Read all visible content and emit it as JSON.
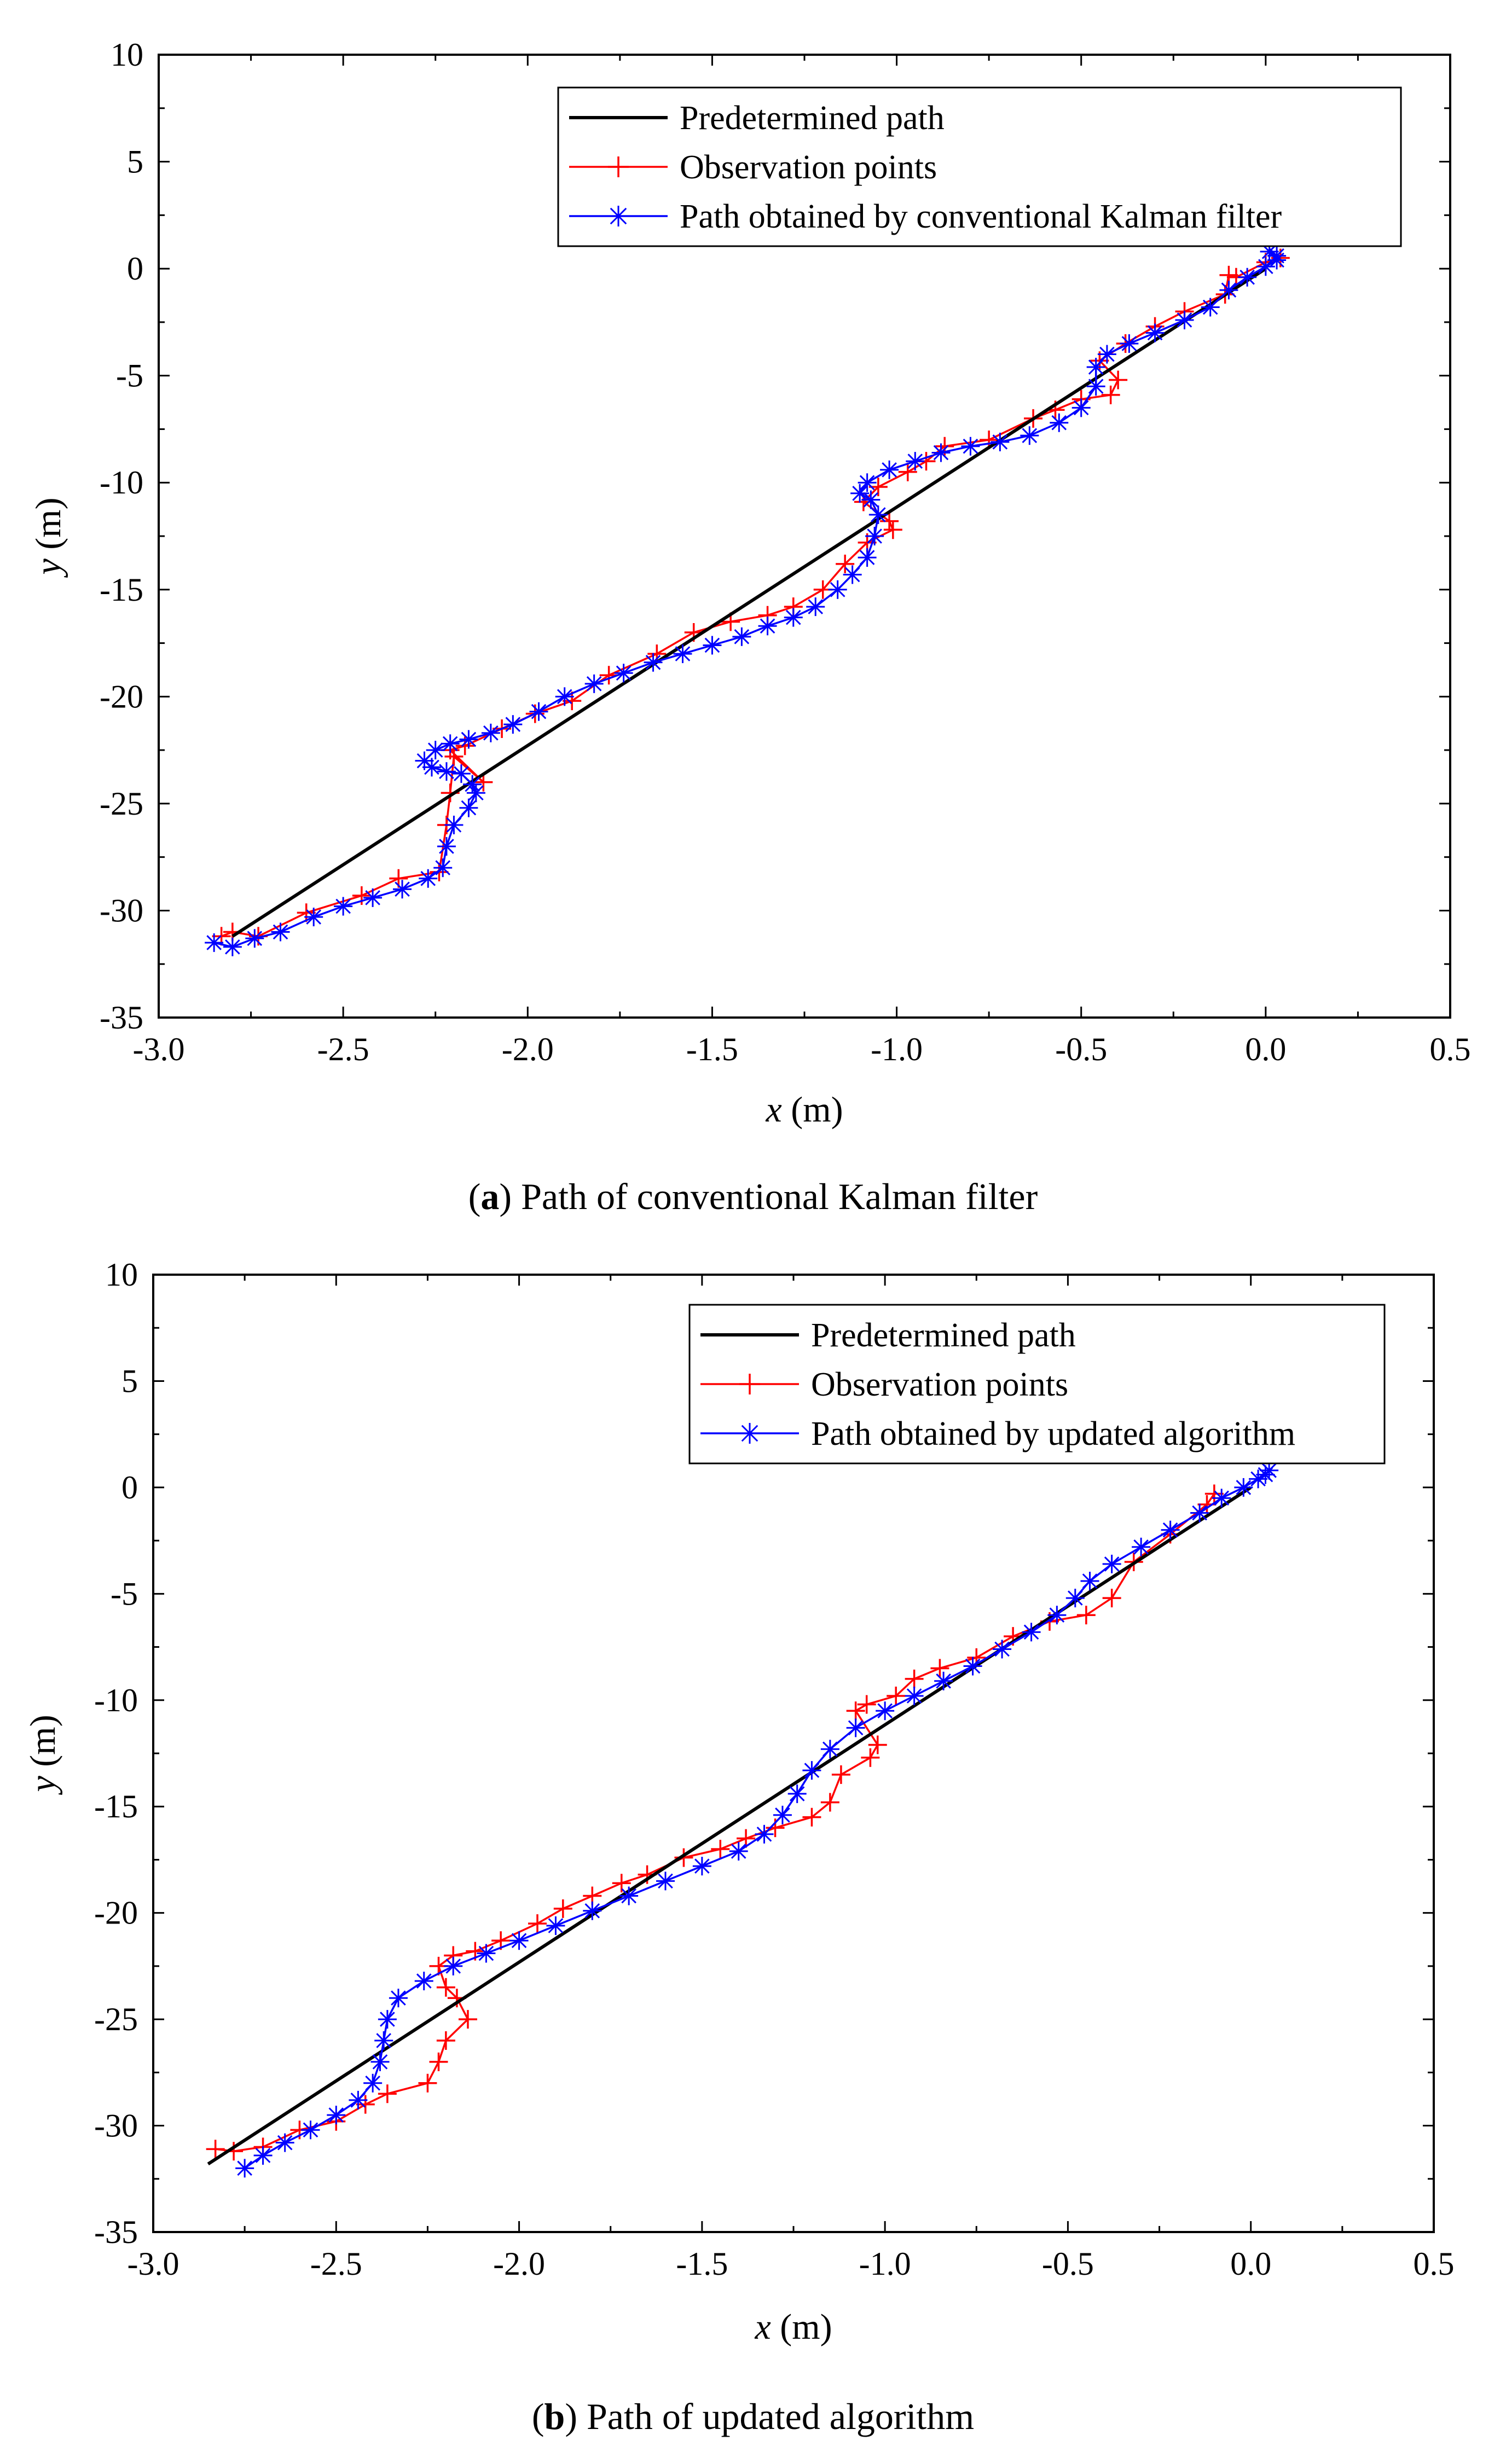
{
  "chart_data": [
    {
      "type": "line",
      "caption_letter": "a",
      "caption_text": " Path of conventional Kalman filter",
      "xlabel_var": "x",
      "xlabel_unit": " (m)",
      "ylabel_var": "y",
      "ylabel_unit": " (m)",
      "xlim": [
        -3.0,
        0.5
      ],
      "ylim": [
        -35,
        10
      ],
      "xticks": [
        -3.0,
        -2.5,
        -2.0,
        -1.5,
        -1.0,
        -0.5,
        0.0,
        0.5
      ],
      "xtick_labels": [
        "-3.0",
        "-2.5",
        "-2.0",
        "-1.5",
        "-1.0",
        "-0.5",
        "0.0",
        "0.5"
      ],
      "yticks": [
        10,
        5,
        0,
        -5,
        -10,
        -15,
        -20,
        -25,
        -30,
        -35
      ],
      "ytick_labels": [
        "10",
        "5",
        "0",
        "-5",
        "-10",
        "-15",
        "-20",
        "-25",
        "-30",
        "-35"
      ],
      "legend_location": "top-right",
      "series": [
        {
          "name": "Predetermined path",
          "color": "#000000",
          "marker": "none",
          "x": [
            -2.8,
            0.0
          ],
          "y": [
            -31.2,
            0.0
          ]
        },
        {
          "name": "Observation points",
          "color": "#ff0000",
          "marker": "plus",
          "x": [
            -2.83,
            -2.8,
            -2.73,
            -2.6,
            -2.45,
            -2.35,
            -2.24,
            -2.22,
            -2.21,
            -2.2,
            -2.12,
            -2.21,
            -2.17,
            -2.07,
            -1.98,
            -1.88,
            -1.78,
            -1.65,
            -1.55,
            -1.45,
            -1.35,
            -1.28,
            -1.2,
            -1.14,
            -1.08,
            -1.01,
            -1.02,
            -1.09,
            -1.05,
            -0.97,
            -0.92,
            -0.87,
            -0.75,
            -0.63,
            -0.57,
            -0.5,
            -0.42,
            -0.4,
            -0.45,
            -0.38,
            -0.3,
            -0.22,
            -0.11,
            -0.1,
            -0.08,
            0.0,
            0.04
          ],
          "y": [
            -31.2,
            -31.0,
            -31.2,
            -30.1,
            -29.3,
            -28.5,
            -28.2,
            -26.0,
            -24.5,
            -22.8,
            -24.0,
            -22.5,
            -22.3,
            -21.5,
            -20.8,
            -20.2,
            -19.0,
            -18.0,
            -17.0,
            -16.5,
            -16.2,
            -15.8,
            -15.0,
            -13.8,
            -12.8,
            -12.2,
            -11.8,
            -10.9,
            -10.2,
            -9.5,
            -9.0,
            -8.3,
            -8.0,
            -7.0,
            -6.6,
            -6.1,
            -5.9,
            -5.2,
            -4.3,
            -3.5,
            -2.7,
            -2.0,
            -1.2,
            -0.3,
            -0.4,
            0.3,
            0.5
          ]
        },
        {
          "name": "Path obtained by conventional Kalman filter",
          "color": "#0000ff",
          "marker": "asterisk",
          "x": [
            -2.85,
            -2.8,
            -2.74,
            -2.67,
            -2.58,
            -2.5,
            -2.42,
            -2.34,
            -2.27,
            -2.23,
            -2.22,
            -2.2,
            -2.16,
            -2.14,
            -2.15,
            -2.18,
            -2.22,
            -2.26,
            -2.28,
            -2.25,
            -2.21,
            -2.16,
            -2.1,
            -2.04,
            -1.97,
            -1.9,
            -1.82,
            -1.74,
            -1.66,
            -1.58,
            -1.5,
            -1.42,
            -1.35,
            -1.28,
            -1.22,
            -1.16,
            -1.12,
            -1.08,
            -1.06,
            -1.05,
            -1.07,
            -1.1,
            -1.08,
            -1.02,
            -0.95,
            -0.88,
            -0.8,
            -0.72,
            -0.64,
            -0.56,
            -0.5,
            -0.46,
            -0.46,
            -0.43,
            -0.37,
            -0.3,
            -0.22,
            -0.15,
            -0.1,
            -0.05,
            0.0,
            0.03,
            0.03,
            0.01
          ],
          "y": [
            -31.5,
            -31.7,
            -31.3,
            -31.0,
            -30.3,
            -29.8,
            -29.4,
            -29.0,
            -28.5,
            -28.0,
            -27.0,
            -26.0,
            -25.2,
            -24.5,
            -24.1,
            -23.6,
            -23.5,
            -23.3,
            -23.0,
            -22.5,
            -22.2,
            -22.0,
            -21.7,
            -21.3,
            -20.7,
            -20.0,
            -19.4,
            -18.9,
            -18.4,
            -18.0,
            -17.6,
            -17.2,
            -16.7,
            -16.3,
            -15.8,
            -15.0,
            -14.3,
            -13.5,
            -12.5,
            -11.5,
            -10.8,
            -10.5,
            -10.0,
            -9.4,
            -9.0,
            -8.6,
            -8.3,
            -8.1,
            -7.8,
            -7.2,
            -6.5,
            -5.5,
            -4.6,
            -4.0,
            -3.5,
            -3.0,
            -2.4,
            -1.8,
            -1.0,
            -0.4,
            0.1,
            0.4,
            0.6,
            0.8
          ]
        }
      ]
    },
    {
      "type": "line",
      "caption_letter": "b",
      "caption_text": " Path of updated algorithm",
      "xlabel_var": "x",
      "xlabel_unit": " (m)",
      "ylabel_var": "y",
      "ylabel_unit": " (m)",
      "xlim": [
        -3.0,
        0.5
      ],
      "ylim": [
        -35,
        10
      ],
      "xticks": [
        -3.0,
        -2.5,
        -2.0,
        -1.5,
        -1.0,
        -0.5,
        0.0,
        0.5
      ],
      "xtick_labels": [
        "-3.0",
        "-2.5",
        "-2.0",
        "-1.5",
        "-1.0",
        "-0.5",
        "0.0",
        "0.5"
      ],
      "yticks": [
        10,
        5,
        0,
        -5,
        -10,
        -15,
        -20,
        -25,
        -30,
        -35
      ],
      "ytick_labels": [
        "10",
        "5",
        "0",
        "-5",
        "-10",
        "-15",
        "-20",
        "-25",
        "-30",
        "-35"
      ],
      "legend_location": "top-right",
      "series": [
        {
          "name": "Predetermined path",
          "color": "#000000",
          "marker": "none",
          "x": [
            -2.85,
            0.0
          ],
          "y": [
            -31.8,
            0.0
          ]
        },
        {
          "name": "Observation points",
          "color": "#ff0000",
          "marker": "plus",
          "x": [
            -2.83,
            -2.78,
            -2.7,
            -2.6,
            -2.5,
            -2.42,
            -2.36,
            -2.25,
            -2.22,
            -2.2,
            -2.14,
            -2.17,
            -2.2,
            -2.22,
            -2.18,
            -2.12,
            -2.05,
            -1.95,
            -1.88,
            -1.8,
            -1.72,
            -1.65,
            -1.55,
            -1.45,
            -1.38,
            -1.3,
            -1.2,
            -1.15,
            -1.12,
            -1.04,
            -1.02,
            -1.08,
            -1.05,
            -0.97,
            -0.92,
            -0.85,
            -0.75,
            -0.65,
            -0.55,
            -0.45,
            -0.38,
            -0.32,
            -0.22,
            -0.12,
            -0.1
          ],
          "y": [
            -31.1,
            -31.2,
            -31.0,
            -30.2,
            -29.8,
            -29.0,
            -28.5,
            -28.0,
            -27.0,
            -26.0,
            -25.0,
            -24.0,
            -23.5,
            -22.5,
            -22.0,
            -21.8,
            -21.3,
            -20.5,
            -19.8,
            -19.2,
            -18.6,
            -18.2,
            -17.4,
            -17.0,
            -16.5,
            -16.0,
            -15.5,
            -14.8,
            -13.5,
            -12.7,
            -12.1,
            -10.5,
            -10.2,
            -9.8,
            -9.0,
            -8.5,
            -8.0,
            -7.0,
            -6.3,
            -6.0,
            -5.2,
            -3.5,
            -2.2,
            -0.8,
            -0.3
          ]
        },
        {
          "name": "Path obtained by updated algorithm",
          "color": "#0000ff",
          "marker": "asterisk",
          "x": [
            -2.75,
            -2.7,
            -2.64,
            -2.57,
            -2.5,
            -2.44,
            -2.4,
            -2.38,
            -2.37,
            -2.36,
            -2.33,
            -2.26,
            -2.18,
            -2.09,
            -2.0,
            -1.9,
            -1.8,
            -1.7,
            -1.6,
            -1.5,
            -1.4,
            -1.33,
            -1.28,
            -1.24,
            -1.2,
            -1.15,
            -1.08,
            -1.0,
            -0.92,
            -0.84,
            -0.76,
            -0.68,
            -0.6,
            -0.53,
            -0.48,
            -0.44,
            -0.38,
            -0.3,
            -0.22,
            -0.14,
            -0.08,
            -0.02,
            0.02,
            0.04,
            0.05
          ],
          "y": [
            -32.0,
            -31.4,
            -30.8,
            -30.2,
            -29.5,
            -28.8,
            -28.0,
            -27.0,
            -26.0,
            -25.0,
            -24.0,
            -23.2,
            -22.5,
            -21.9,
            -21.3,
            -20.6,
            -19.9,
            -19.2,
            -18.5,
            -17.8,
            -17.1,
            -16.3,
            -15.4,
            -14.4,
            -13.3,
            -12.3,
            -11.3,
            -10.5,
            -9.8,
            -9.1,
            -8.4,
            -7.6,
            -6.8,
            -6.0,
            -5.2,
            -4.4,
            -3.6,
            -2.8,
            -2.0,
            -1.2,
            -0.5,
            0.0,
            0.4,
            0.6,
            0.8
          ]
        }
      ]
    }
  ]
}
